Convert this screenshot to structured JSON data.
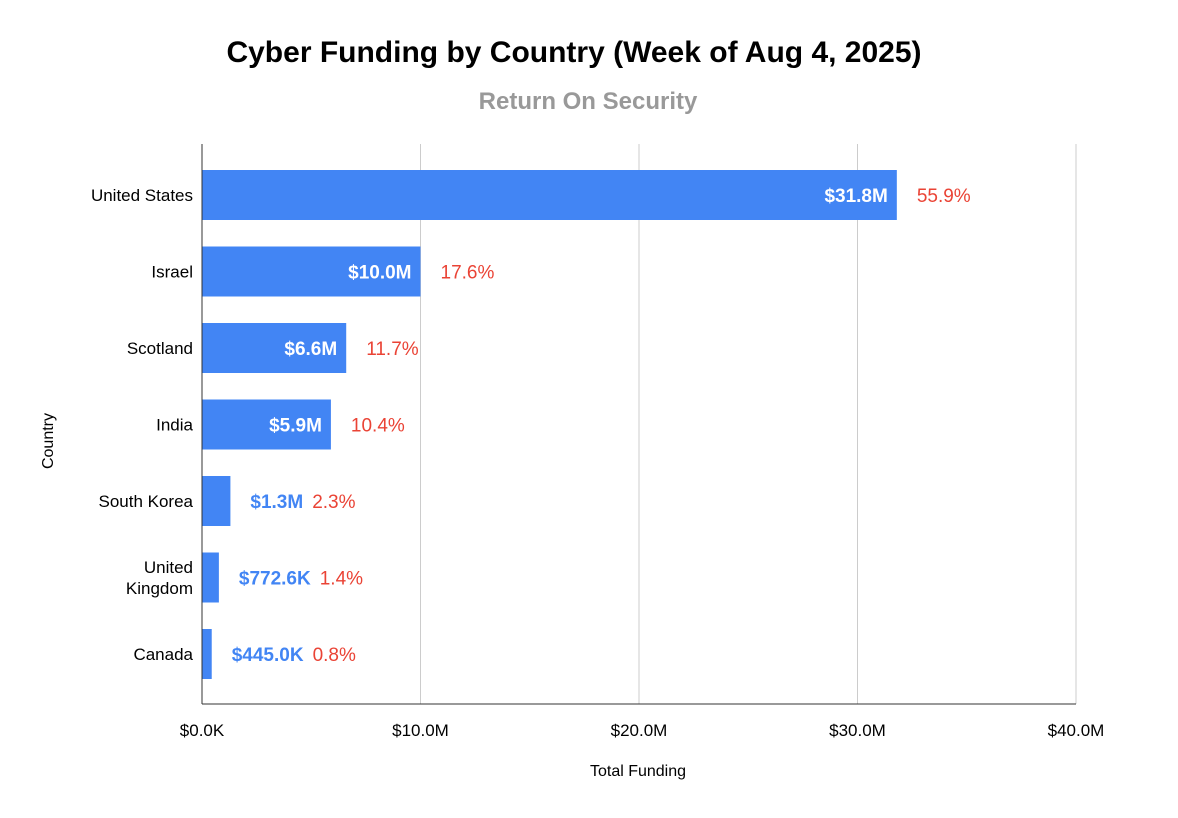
{
  "chart_data": {
    "type": "bar",
    "orientation": "horizontal",
    "title": "Cyber Funding by Country (Week of Aug 4, 2025)",
    "subtitle": "Return On Security",
    "xlabel": "Total Funding",
    "ylabel": "Country",
    "xlim": [
      0,
      40
    ],
    "x_unit": "$M",
    "x_ticks": [
      0,
      10,
      20,
      30,
      40
    ],
    "x_tick_labels": [
      "$0.0K",
      "$10.0M",
      "$20.0M",
      "$30.0M",
      "$40.0M"
    ],
    "grid": true,
    "categories": [
      "United States",
      "Israel",
      "Scotland",
      "India",
      "South Korea",
      "United Kingdom",
      "Canada"
    ],
    "category_display": [
      [
        "United States"
      ],
      [
        "Israel"
      ],
      [
        "Scotland"
      ],
      [
        "India"
      ],
      [
        "South Korea"
      ],
      [
        "United",
        "Kingdom"
      ],
      [
        "Canada"
      ]
    ],
    "values": [
      31.8,
      10.0,
      6.6,
      5.9,
      1.3,
      0.7726,
      0.445
    ],
    "value_labels": [
      "$31.8M",
      "$10.0M",
      "$6.6M",
      "$5.9M",
      "$1.3M",
      "$772.6K",
      "$445.0K"
    ],
    "percent_labels": [
      "55.9%",
      "17.6%",
      "11.7%",
      "10.4%",
      "2.3%",
      "1.4%",
      "0.8%"
    ],
    "colors": {
      "bar": "#4285f4",
      "value_label_inside": "#ffffff",
      "value_label_outside": "#4285f4",
      "percent_label": "#ea4335",
      "grid": "#cccccc",
      "axis": "#333333",
      "subtitle": "#999999"
    }
  }
}
